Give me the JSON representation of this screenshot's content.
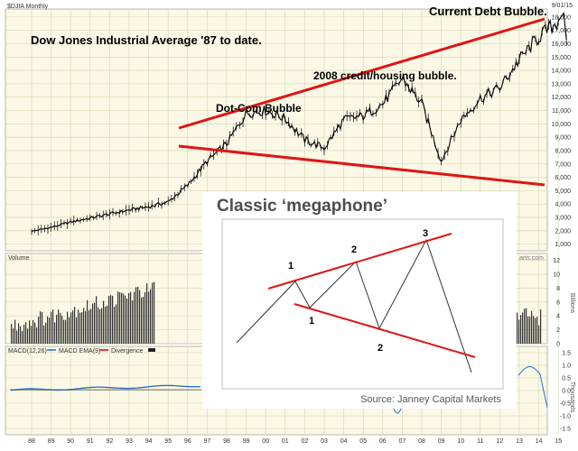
{
  "header": {
    "symbol_label": "$DJIA Monthly",
    "date_label": "9/01/15"
  },
  "annotations": {
    "title": "Dow Jones Industrial Average '87 to date.",
    "dotcom": "Dot-Com Bubble",
    "credit": "2008 credit/housing bubble.",
    "current": "Current Debt Bubble."
  },
  "panels": {
    "volume_label": "Volume",
    "volume_unit": "Billions",
    "macd_label": "MACD(12,26)",
    "macd_ema_label": "MACD EMA(9)",
    "divergence_label": "Divergence",
    "macd_unit": "Thousands"
  },
  "inset": {
    "title": "Classic ‘megaphone’",
    "source": "Source: Janney Capital Markets",
    "peak_labels": [
      "1",
      "2",
      "3"
    ],
    "trough_labels": [
      "1",
      "2"
    ]
  },
  "watermark_fragment": "arts.com",
  "chart_data": [
    {
      "type": "line",
      "title": "",
      "x": [
        "88",
        "89",
        "90",
        "91",
        "92",
        "93",
        "94",
        "95",
        "96",
        "97",
        "98",
        "99",
        "00",
        "01",
        "02",
        "03",
        "04",
        "05",
        "06",
        "07",
        "08",
        "09",
        "10",
        "11",
        "12",
        "13",
        "14",
        "15"
      ],
      "series": [
        {
          "values": [
            1950,
            2250,
            2650,
            2950,
            3250,
            3550,
            3800,
            4150,
            5400,
            7200,
            8500,
            10800,
            11000,
            10400,
            8800,
            8200,
            10300,
            10600,
            11500,
            13400,
            11500,
            7200,
            10300,
            11900,
            12700,
            14800,
            16500,
            17700
          ]
        }
      ],
      "peak": {
        "label": "",
        "value": 18300
      },
      "end": {
        "label": "",
        "value": 16300
      },
      "yticks": [
        1000,
        2000,
        3000,
        4000,
        5000,
        6000,
        7000,
        8000,
        9000,
        10000,
        11000,
        12000,
        13000,
        14000,
        15000,
        16000,
        17000,
        18000
      ],
      "ytick_labels": [
        "1,000",
        "2,000",
        "3,000",
        "4,000",
        "5,000",
        "6,000",
        "7,000",
        "8,000",
        "9,000",
        "10,000",
        "11,000",
        "12,000",
        "13,000",
        "14,000",
        "15,000",
        "16,000",
        "17,000",
        "18,000"
      ],
      "ylim": [
        500,
        18600
      ],
      "grid": true
    },
    {
      "type": "bar",
      "title": "Volume",
      "ylabel": "Billions",
      "yticks": [
        0,
        2,
        4,
        6,
        8,
        10,
        12
      ],
      "ylim": [
        0,
        13
      ]
    },
    {
      "type": "line",
      "title": "MACD",
      "ylabel": "Thousands",
      "yticks": [
        1.5,
        1.0,
        0.5,
        0.0,
        -0.5,
        -1.0,
        -1.5
      ],
      "ytick_labels": [
        "1.5",
        "1.0",
        "0.5",
        "0.0",
        "-0.5",
        "-1.0",
        "-1.5"
      ],
      "ylim": [
        -1.75,
        1.75
      ],
      "series": [
        {
          "name": "MACD(12,26)",
          "color": "#1e6fd9"
        },
        {
          "name": "MACD EMA(9)",
          "color": "#555555"
        },
        {
          "name": "Divergence",
          "color": "#cc0000"
        }
      ]
    }
  ],
  "colors": {
    "panel_bg": "#fbf8e6",
    "grid": "#cdd7b3",
    "price": "#000000",
    "trend": "#e01414",
    "annotation": "#000000",
    "inset_title": "#4d4d4d",
    "macd": "#1e6fd9"
  }
}
